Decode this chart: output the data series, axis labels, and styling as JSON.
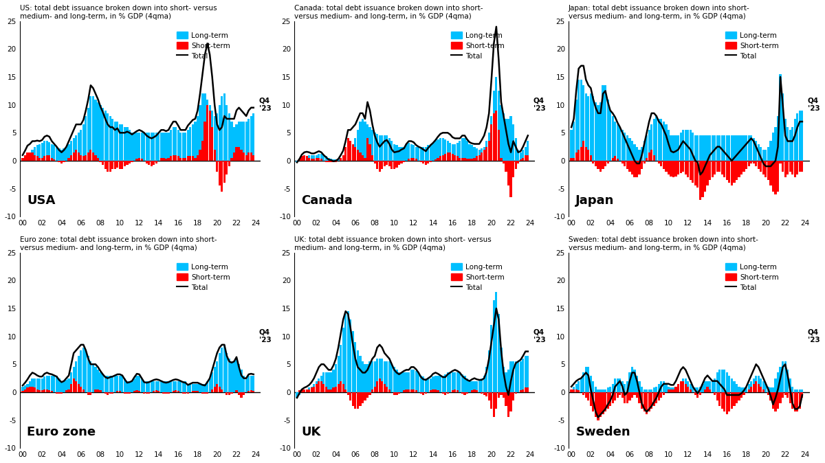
{
  "panels": [
    {
      "title": "US: total debt issuance broken down into short- versus\nmedium- and long-term, in % GDP (4qma)",
      "country_label": "USA",
      "ylim": [
        -10,
        25
      ],
      "yticks": [
        -10,
        -5,
        0,
        5,
        10,
        15,
        20,
        25
      ]
    },
    {
      "title": "Canada: total debt issuance broken down into short-\nversus medium- and long-term, in % GDP (4qma)",
      "country_label": "Canada",
      "ylim": [
        -10,
        25
      ],
      "yticks": [
        -10,
        -5,
        0,
        5,
        10,
        15,
        20,
        25
      ]
    },
    {
      "title": "Japan: total debt issuance broken down into short-\nversus medium- and long-term, in % GDP (4qma)",
      "country_label": "Japan",
      "ylim": [
        -10,
        25
      ],
      "yticks": [
        -10,
        -5,
        0,
        5,
        10,
        15,
        20,
        25
      ]
    },
    {
      "title": "Euro zone: total debt issuance broken down into short-\nversus medium- and long-term, in % GDP (4qma)",
      "country_label": "Euro zone",
      "ylim": [
        -10,
        25
      ],
      "yticks": [
        -10,
        -5,
        0,
        5,
        10,
        15,
        20,
        25
      ]
    },
    {
      "title": "UK: total debt issuance broken down into short- versus\nmedium- and long-term, in % GDP (4qma)",
      "country_label": "UK",
      "ylim": [
        -10,
        25
      ],
      "yticks": [
        -10,
        -5,
        0,
        5,
        10,
        15,
        20,
        25
      ]
    },
    {
      "title": "Sweden: total debt issuance broken down into short-\nversus medium- and long-term, in % GDP (4qma)",
      "country_label": "Sweden",
      "ylim": [
        -10,
        25
      ],
      "yticks": [
        -10,
        -5,
        0,
        5,
        10,
        15,
        20,
        25
      ]
    }
  ],
  "xtick_labels": [
    "00",
    "02",
    "04",
    "06",
    "08",
    "10",
    "12",
    "14",
    "16",
    "18",
    "20",
    "22",
    "24"
  ],
  "long_term_color": "#00BFFF",
  "short_term_color": "#FF0000",
  "total_color": "#000000",
  "legend_labels": [
    "Long-term",
    "Short-term",
    "Total"
  ],
  "q4_annotation": "Q4\n'23",
  "background_color": "#FFFFFF",
  "USA_long": [
    0.5,
    0.8,
    1.2,
    1.5,
    2.0,
    2.5,
    2.8,
    3.0,
    3.2,
    3.5,
    3.5,
    3.3,
    3.0,
    2.8,
    2.5,
    2.2,
    2.0,
    2.2,
    2.5,
    3.0,
    3.5,
    4.0,
    4.5,
    5.0,
    5.5,
    6.5,
    8.0,
    9.5,
    11.5,
    11.5,
    11.0,
    10.5,
    10.0,
    9.5,
    9.0,
    8.5,
    8.0,
    7.5,
    7.0,
    7.0,
    6.5,
    6.5,
    6.0,
    6.0,
    5.5,
    5.0,
    5.0,
    5.0,
    5.0,
    5.0,
    5.0,
    5.0,
    5.0,
    5.0,
    5.0,
    5.0,
    5.0,
    5.0,
    5.0,
    5.0,
    5.0,
    5.5,
    6.0,
    6.0,
    5.5,
    5.0,
    5.0,
    5.0,
    5.5,
    6.0,
    6.5,
    7.0,
    8.0,
    10.0,
    12.0,
    12.0,
    11.0,
    10.0,
    9.0,
    8.0,
    8.5,
    10.0,
    11.5,
    12.0,
    10.0,
    8.5,
    7.0,
    6.0,
    6.5,
    7.0,
    7.0,
    7.0,
    7.0,
    7.5,
    8.0,
    8.5
  ],
  "USA_short": [
    0.5,
    1.0,
    1.5,
    1.5,
    1.5,
    1.0,
    0.8,
    0.5,
    0.5,
    0.8,
    1.0,
    1.0,
    0.5,
    0.2,
    0.0,
    -0.3,
    -0.5,
    -0.3,
    0.0,
    0.5,
    1.0,
    1.5,
    2.0,
    1.5,
    1.0,
    0.8,
    1.0,
    1.5,
    2.0,
    1.5,
    1.0,
    0.5,
    -0.3,
    -0.8,
    -1.5,
    -2.0,
    -2.0,
    -1.5,
    -1.5,
    -1.2,
    -1.5,
    -1.5,
    -1.0,
    -0.8,
    -0.5,
    -0.3,
    0.0,
    0.3,
    0.5,
    0.3,
    0.0,
    -0.5,
    -0.8,
    -1.0,
    -0.8,
    -0.5,
    0.0,
    0.5,
    0.5,
    0.3,
    0.5,
    0.8,
    1.0,
    1.0,
    0.8,
    0.5,
    0.5,
    0.5,
    0.8,
    0.8,
    0.8,
    0.5,
    1.0,
    2.0,
    3.5,
    7.0,
    10.0,
    9.0,
    6.0,
    2.0,
    -2.0,
    -4.5,
    -5.5,
    -4.0,
    -2.5,
    -1.0,
    0.5,
    1.5,
    2.5,
    2.5,
    2.0,
    1.5,
    1.0,
    1.5,
    1.5,
    1.0
  ],
  "Canada_long": [
    -0.3,
    0.0,
    0.3,
    0.5,
    0.8,
    1.0,
    1.0,
    1.0,
    1.0,
    1.2,
    1.2,
    1.0,
    0.8,
    0.5,
    0.3,
    0.2,
    0.2,
    0.3,
    0.5,
    0.8,
    1.0,
    1.5,
    2.0,
    3.0,
    4.0,
    5.5,
    7.0,
    7.5,
    7.0,
    6.5,
    6.0,
    5.5,
    5.0,
    4.8,
    4.5,
    4.5,
    4.5,
    4.5,
    4.0,
    3.5,
    3.0,
    2.8,
    2.5,
    2.5,
    2.5,
    3.0,
    3.2,
    3.0,
    2.8,
    2.5,
    2.5,
    2.5,
    2.5,
    2.5,
    2.8,
    3.0,
    3.2,
    3.5,
    3.8,
    4.0,
    4.0,
    3.8,
    3.5,
    3.2,
    3.0,
    3.0,
    3.2,
    3.5,
    4.0,
    4.0,
    3.5,
    3.0,
    2.8,
    2.5,
    2.2,
    2.0,
    2.2,
    2.5,
    3.5,
    5.0,
    8.0,
    12.5,
    15.0,
    12.5,
    10.0,
    8.5,
    7.5,
    7.5,
    8.0,
    6.5,
    4.0,
    2.0,
    1.5,
    2.0,
    2.5,
    3.5
  ],
  "Canada_short": [
    0.0,
    0.3,
    0.8,
    1.0,
    0.8,
    0.5,
    0.3,
    0.3,
    0.5,
    0.5,
    0.3,
    0.0,
    -0.2,
    -0.3,
    -0.2,
    -0.3,
    -0.2,
    0.0,
    0.5,
    1.0,
    2.5,
    4.0,
    3.5,
    3.0,
    2.5,
    2.0,
    1.5,
    1.0,
    0.5,
    4.0,
    3.0,
    1.0,
    -0.5,
    -1.5,
    -2.0,
    -1.5,
    -1.0,
    -0.8,
    -1.0,
    -1.5,
    -1.5,
    -1.2,
    -0.8,
    -0.5,
    -0.3,
    0.0,
    0.3,
    0.5,
    0.5,
    0.3,
    0.0,
    -0.2,
    -0.5,
    -0.8,
    -0.5,
    -0.2,
    0.0,
    0.2,
    0.5,
    0.8,
    1.0,
    1.2,
    1.5,
    1.5,
    1.2,
    1.0,
    0.8,
    0.5,
    0.5,
    0.5,
    0.3,
    0.3,
    0.3,
    0.5,
    0.8,
    1.0,
    1.5,
    2.0,
    2.5,
    3.5,
    6.5,
    8.5,
    9.0,
    5.5,
    0.5,
    -0.5,
    -2.0,
    -4.5,
    -6.5,
    -3.0,
    -1.5,
    -0.5,
    0.2,
    0.5,
    1.0,
    1.0
  ],
  "Japan_long": [
    5.5,
    7.0,
    11.0,
    14.5,
    14.5,
    13.5,
    12.0,
    11.5,
    12.0,
    11.5,
    10.5,
    10.0,
    10.5,
    13.5,
    13.5,
    11.0,
    9.0,
    8.0,
    7.0,
    6.5,
    6.0,
    5.5,
    5.0,
    4.5,
    4.0,
    3.5,
    3.0,
    2.5,
    2.0,
    2.5,
    3.5,
    4.5,
    5.5,
    6.5,
    7.5,
    8.0,
    7.5,
    7.5,
    7.0,
    6.5,
    5.5,
    4.5,
    4.5,
    4.5,
    4.5,
    5.0,
    5.5,
    5.5,
    5.5,
    5.5,
    5.0,
    4.5,
    4.5,
    4.5,
    4.5,
    4.5,
    4.5,
    4.5,
    4.5,
    4.5,
    4.5,
    4.5,
    4.5,
    4.5,
    4.5,
    4.5,
    4.5,
    4.5,
    4.5,
    4.5,
    4.5,
    4.5,
    4.5,
    4.5,
    4.5,
    4.0,
    3.5,
    3.0,
    2.5,
    2.0,
    2.0,
    2.5,
    3.5,
    5.0,
    6.0,
    8.0,
    15.5,
    12.0,
    7.5,
    6.0,
    5.5,
    6.0,
    7.5,
    8.5,
    9.0,
    9.0
  ],
  "Japan_short": [
    0.5,
    0.5,
    1.5,
    2.0,
    2.5,
    3.5,
    2.5,
    2.0,
    1.0,
    -0.5,
    -1.0,
    -1.5,
    -2.0,
    -1.5,
    -1.0,
    -0.5,
    0.0,
    0.5,
    0.8,
    0.3,
    0.0,
    -0.5,
    -1.0,
    -1.5,
    -2.0,
    -2.5,
    -3.0,
    -3.0,
    -2.5,
    -1.5,
    -0.5,
    0.5,
    1.5,
    2.0,
    1.0,
    0.0,
    -0.5,
    -1.0,
    -1.5,
    -2.0,
    -2.5,
    -2.8,
    -3.0,
    -2.8,
    -2.5,
    -2.2,
    -2.0,
    -2.5,
    -3.0,
    -3.5,
    -4.0,
    -4.5,
    -4.8,
    -7.0,
    -6.5,
    -5.5,
    -4.5,
    -3.5,
    -3.0,
    -2.5,
    -2.0,
    -2.0,
    -2.5,
    -3.0,
    -3.5,
    -4.0,
    -4.5,
    -4.0,
    -3.5,
    -3.0,
    -2.5,
    -2.0,
    -1.5,
    -1.0,
    -0.5,
    -0.5,
    -1.0,
    -1.5,
    -2.0,
    -2.5,
    -3.0,
    -3.5,
    -4.5,
    -5.5,
    -6.0,
    -5.5,
    -0.5,
    -2.0,
    -3.0,
    -2.5,
    -2.0,
    -2.5,
    -3.0,
    -2.5,
    -2.0,
    -2.0
  ],
  "Eurozone_long": [
    1.0,
    1.2,
    1.5,
    2.0,
    2.5,
    2.5,
    2.5,
    2.5,
    2.5,
    2.8,
    3.0,
    3.0,
    3.0,
    3.0,
    3.0,
    2.5,
    2.0,
    2.0,
    2.2,
    2.5,
    3.5,
    4.5,
    5.5,
    6.5,
    7.5,
    8.0,
    7.5,
    6.5,
    5.5,
    5.0,
    4.5,
    4.0,
    3.5,
    3.2,
    3.0,
    3.0,
    3.0,
    3.0,
    3.0,
    3.0,
    3.0,
    3.0,
    2.5,
    2.0,
    2.0,
    2.0,
    2.5,
    3.0,
    3.0,
    2.5,
    2.0,
    2.0,
    2.0,
    2.0,
    2.0,
    2.0,
    2.0,
    2.0,
    2.0,
    2.0,
    2.0,
    2.0,
    2.0,
    2.0,
    2.0,
    2.0,
    2.0,
    2.0,
    1.5,
    1.5,
    1.5,
    1.5,
    1.5,
    1.5,
    1.5,
    1.5,
    2.0,
    2.5,
    3.5,
    4.5,
    5.5,
    7.0,
    8.0,
    8.5,
    7.0,
    6.0,
    5.5,
    5.5,
    6.0,
    5.0,
    4.0,
    3.0,
    2.5,
    3.0,
    3.0,
    3.0
  ],
  "Eurozone_short": [
    0.2,
    0.5,
    0.8,
    1.0,
    1.0,
    0.8,
    0.5,
    0.3,
    0.3,
    0.5,
    0.5,
    0.3,
    0.2,
    0.0,
    -0.2,
    -0.3,
    -0.2,
    0.0,
    0.3,
    0.5,
    1.5,
    2.5,
    2.0,
    1.5,
    1.0,
    0.5,
    0.0,
    -0.5,
    -0.5,
    0.0,
    0.5,
    0.5,
    0.3,
    0.0,
    -0.3,
    -0.5,
    -0.3,
    -0.2,
    0.0,
    0.2,
    0.2,
    0.0,
    -0.2,
    -0.3,
    -0.2,
    0.0,
    0.2,
    0.3,
    0.2,
    0.0,
    -0.2,
    -0.3,
    -0.2,
    0.0,
    0.2,
    0.3,
    0.2,
    0.0,
    -0.2,
    -0.3,
    -0.2,
    0.0,
    0.2,
    0.3,
    0.2,
    0.0,
    -0.2,
    -0.3,
    -0.2,
    0.0,
    0.2,
    0.2,
    0.2,
    0.0,
    -0.2,
    -0.3,
    -0.2,
    0.0,
    0.5,
    1.0,
    1.5,
    1.0,
    0.5,
    0.0,
    -0.5,
    -0.5,
    -0.2,
    0.0,
    0.3,
    -0.5,
    -1.0,
    -0.5,
    0.0,
    0.2,
    0.3,
    0.2
  ],
  "UK_long": [
    -1.0,
    -0.5,
    0.0,
    0.3,
    0.5,
    0.8,
    1.0,
    1.5,
    2.0,
    2.5,
    3.0,
    3.5,
    3.5,
    3.5,
    3.5,
    4.0,
    5.0,
    6.5,
    8.5,
    11.5,
    14.0,
    14.5,
    13.0,
    11.0,
    9.0,
    7.5,
    6.5,
    5.5,
    5.0,
    5.0,
    5.5,
    5.5,
    5.5,
    6.0,
    6.0,
    6.0,
    5.5,
    5.5,
    5.5,
    5.0,
    4.5,
    4.0,
    3.5,
    3.5,
    3.5,
    3.5,
    3.5,
    4.0,
    4.0,
    3.8,
    3.5,
    3.0,
    2.8,
    2.5,
    2.5,
    2.5,
    2.8,
    3.0,
    3.0,
    3.0,
    3.0,
    3.2,
    3.5,
    3.5,
    3.5,
    3.5,
    3.5,
    3.5,
    3.2,
    3.0,
    2.5,
    2.0,
    2.0,
    2.0,
    2.0,
    2.2,
    2.5,
    3.0,
    4.5,
    7.5,
    12.0,
    16.5,
    18.0,
    14.0,
    8.0,
    4.5,
    3.5,
    4.0,
    5.5,
    5.5,
    5.5,
    5.5,
    5.5,
    6.0,
    6.5,
    6.5
  ],
  "UK_short": [
    0.0,
    0.3,
    0.5,
    0.5,
    0.5,
    0.5,
    0.8,
    1.0,
    1.5,
    2.0,
    2.0,
    1.5,
    1.0,
    0.5,
    0.5,
    0.8,
    1.0,
    1.5,
    2.0,
    1.5,
    0.5,
    -0.5,
    -1.5,
    -2.5,
    -3.0,
    -3.0,
    -2.5,
    -2.0,
    -1.5,
    -1.0,
    -0.5,
    0.5,
    1.0,
    2.0,
    2.5,
    2.0,
    1.5,
    1.0,
    0.5,
    0.0,
    -0.5,
    -0.5,
    -0.3,
    0.0,
    0.3,
    0.5,
    0.5,
    0.5,
    0.5,
    0.3,
    0.0,
    -0.3,
    -0.5,
    -0.3,
    0.0,
    0.3,
    0.5,
    0.5,
    0.3,
    0.0,
    -0.3,
    -0.5,
    -0.3,
    0.0,
    0.3,
    0.5,
    0.3,
    0.0,
    -0.3,
    -0.5,
    -0.3,
    0.0,
    0.3,
    0.5,
    0.3,
    0.0,
    -0.3,
    -0.5,
    -0.8,
    -1.5,
    -3.0,
    -4.5,
    -3.0,
    -1.0,
    -0.5,
    -1.0,
    -2.5,
    -4.5,
    -3.5,
    -1.5,
    -0.3,
    0.0,
    0.3,
    0.5,
    0.8,
    0.8
  ],
  "Sweden_long": [
    0.5,
    1.0,
    1.5,
    2.0,
    2.5,
    3.5,
    4.5,
    4.5,
    3.0,
    2.0,
    1.0,
    0.5,
    0.5,
    0.5,
    0.5,
    0.8,
    1.0,
    1.5,
    2.5,
    2.5,
    2.5,
    2.0,
    1.5,
    2.0,
    3.5,
    4.5,
    4.0,
    3.0,
    2.0,
    1.0,
    0.5,
    0.5,
    0.5,
    0.5,
    0.8,
    1.0,
    1.5,
    2.0,
    2.0,
    1.5,
    1.0,
    0.8,
    0.8,
    1.0,
    1.5,
    2.0,
    2.5,
    2.5,
    2.0,
    1.5,
    1.0,
    0.8,
    0.8,
    1.0,
    1.5,
    2.0,
    2.0,
    2.0,
    2.0,
    2.5,
    3.5,
    4.0,
    4.0,
    4.0,
    3.5,
    3.0,
    2.5,
    2.0,
    1.5,
    1.0,
    0.8,
    0.8,
    1.0,
    1.5,
    2.0,
    2.5,
    3.0,
    3.0,
    2.5,
    2.0,
    1.5,
    1.0,
    0.8,
    0.8,
    2.5,
    3.5,
    4.5,
    5.5,
    5.5,
    4.0,
    2.5,
    1.0,
    0.5,
    0.5,
    0.5,
    0.5
  ],
  "Sweden_short": [
    0.5,
    0.5,
    0.5,
    0.3,
    0.0,
    -0.5,
    -1.0,
    -1.5,
    -2.5,
    -3.5,
    -4.5,
    -5.0,
    -4.5,
    -4.0,
    -3.5,
    -3.0,
    -2.5,
    -2.0,
    -1.5,
    -1.0,
    -0.5,
    -1.0,
    -2.0,
    -2.0,
    -1.5,
    -1.0,
    -0.5,
    -1.0,
    -2.0,
    -3.0,
    -3.5,
    -4.0,
    -3.5,
    -3.0,
    -2.5,
    -2.0,
    -1.5,
    -1.0,
    -0.5,
    0.0,
    0.5,
    0.5,
    0.5,
    1.0,
    1.5,
    2.0,
    2.0,
    1.5,
    1.0,
    0.5,
    0.0,
    -0.5,
    -1.0,
    -0.5,
    0.0,
    0.5,
    1.0,
    0.5,
    0.0,
    -0.5,
    -1.5,
    -2.5,
    -3.0,
    -3.5,
    -4.0,
    -3.5,
    -3.0,
    -2.5,
    -2.0,
    -1.5,
    -1.0,
    -0.5,
    0.0,
    0.5,
    1.0,
    1.5,
    2.0,
    1.5,
    1.0,
    0.5,
    0.0,
    -0.5,
    -1.5,
    -3.0,
    -3.5,
    -3.0,
    -2.0,
    -1.0,
    -0.5,
    -1.0,
    -2.0,
    -3.0,
    -3.5,
    -3.5,
    -3.0,
    -1.0
  ]
}
